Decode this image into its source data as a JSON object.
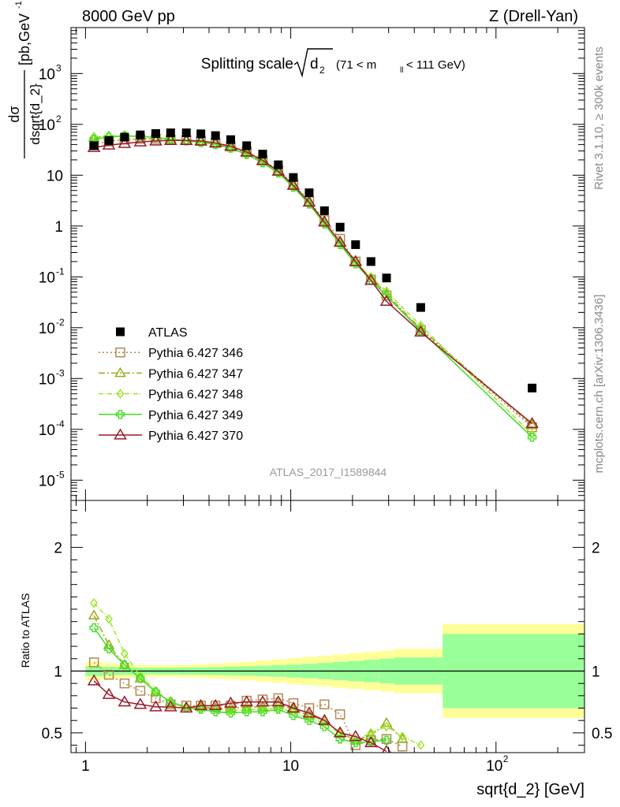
{
  "header": {
    "left": "8000 GeV pp",
    "right": "Z (Drell-Yan)"
  },
  "side_text": {
    "rivet": "Rivet 3.1.10, ≥ 300k events",
    "source": "mcplots.cern.ch [arXiv:1306.3436]"
  },
  "chart_data": [
    {
      "type": "scatter",
      "panel": "main",
      "title": "Splitting scale",
      "title_symbol": "d",
      "title_symbol_sub": "2",
      "title_cut": "(71 < m",
      "title_cut_sub": "ll",
      "title_cut_tail": " < 111 GeV)",
      "ylabel": {
        "num": "dσ",
        "den": "dsqrt{d_2}",
        "units": "[pb,GeV",
        "units_sup": "-1",
        "units_tail": "]"
      },
      "log_x": true,
      "log_y": true,
      "xlim": [
        0.85,
        270
      ],
      "ylim": [
        4e-06,
        8000
      ],
      "y_ticks": [
        {
          "base": "10",
          "exp": "-5",
          "value": 1e-05
        },
        {
          "base": "10",
          "exp": "-4",
          "value": 0.0001
        },
        {
          "base": "10",
          "exp": "-3",
          "value": 0.001
        },
        {
          "base": "10",
          "exp": "-2",
          "value": 0.01
        },
        {
          "base": "10",
          "exp": "-1",
          "value": 0.1
        },
        {
          "base": "1",
          "exp": "",
          "value": 1
        },
        {
          "base": "10",
          "exp": "",
          "value": 10
        },
        {
          "base": "10",
          "exp": "2",
          "value": 100
        },
        {
          "base": "10",
          "exp": "3",
          "value": 1000
        }
      ],
      "watermark": "ATLAS_2017_I1589844",
      "data": {
        "name": "ATLAS",
        "color": "#000000",
        "x": [
          1.1,
          1.3,
          1.55,
          1.85,
          2.2,
          2.6,
          3.1,
          3.65,
          4.3,
          5.1,
          6.1,
          7.3,
          8.7,
          10.3,
          12.3,
          14.6,
          17.4,
          20.7,
          24.6,
          29.3,
          43.0,
          150.0
        ],
        "y": [
          38,
          48,
          56,
          62,
          66,
          68,
          68,
          65,
          60,
          50,
          38,
          26,
          16,
          9.0,
          4.5,
          2.0,
          0.95,
          0.43,
          0.2,
          0.095,
          0.025,
          0.00065
        ]
      },
      "series": [
        {
          "name": "Pythia 6.427 346",
          "color": "#b08a50",
          "dash": "2,3",
          "marker": "square",
          "x": [
            1.1,
            1.3,
            1.55,
            1.85,
            2.2,
            2.6,
            3.1,
            3.65,
            4.3,
            5.1,
            6.1,
            7.3,
            8.7,
            10.3,
            12.3,
            14.6,
            17.4,
            20.7,
            24.6,
            29.3,
            43.0,
            150.0
          ],
          "y": [
            41,
            46,
            50,
            52,
            52,
            50,
            49,
            47,
            43,
            37,
            29,
            20,
            12.5,
            6.7,
            3.1,
            1.3,
            0.56,
            0.2,
            0.088,
            0.043,
            0.009,
            0.00011
          ]
        },
        {
          "name": "Pythia 6.427 347",
          "color": "#9aaa1a",
          "dash": "8,3,2,3",
          "marker": "triangle",
          "x": [
            1.1,
            1.3,
            1.55,
            1.85,
            2.2,
            2.6,
            3.1,
            3.65,
            4.3,
            5.1,
            6.1,
            7.3,
            8.7,
            10.3,
            12.3,
            14.6,
            17.4,
            20.7,
            24.6,
            29.3,
            43.0,
            150.0
          ],
          "y": [
            55,
            58,
            59,
            58,
            55,
            51,
            48,
            46,
            42,
            35,
            27,
            18.5,
            11.7,
            6.2,
            2.9,
            1.2,
            0.47,
            0.19,
            0.095,
            0.046,
            0.0095,
            0.00012
          ]
        },
        {
          "name": "Pythia 6.427 348",
          "color": "#9be62e",
          "dash": "6,2,1,2",
          "marker": "diamond",
          "x": [
            1.1,
            1.3,
            1.55,
            1.85,
            2.2,
            2.6,
            3.1,
            3.65,
            4.3,
            5.1,
            6.1,
            7.3,
            8.7,
            10.3,
            12.3,
            14.6,
            17.4,
            20.7,
            24.6,
            29.3,
            43.0,
            150.0
          ],
          "y": [
            57,
            59,
            60,
            58,
            55,
            51,
            48,
            45,
            41,
            34,
            26,
            18,
            11.2,
            6.0,
            2.8,
            1.15,
            0.45,
            0.19,
            0.1,
            0.052,
            0.011,
            8e-05
          ]
        },
        {
          "name": "Pythia 6.427 349",
          "color": "#44dd22",
          "dash": "",
          "marker": "cross",
          "x": [
            1.1,
            1.3,
            1.55,
            1.85,
            2.2,
            2.6,
            3.1,
            3.65,
            4.3,
            5.1,
            6.1,
            7.3,
            8.7,
            10.3,
            12.3,
            14.6,
            17.4,
            20.7,
            24.6,
            29.3,
            43.0,
            150.0
          ],
          "y": [
            51,
            56,
            59,
            58,
            55,
            51,
            47,
            44,
            40,
            34,
            25.5,
            17.5,
            11,
            5.8,
            2.7,
            1.1,
            0.43,
            0.18,
            0.086,
            0.042,
            0.0087,
            7e-05
          ]
        },
        {
          "name": "Pythia 6.427 370",
          "color": "#9c1a2a",
          "dash": "",
          "marker": "triangle-open",
          "x": [
            1.1,
            1.3,
            1.55,
            1.85,
            2.2,
            2.6,
            3.1,
            3.65,
            4.3,
            5.1,
            6.1,
            7.3,
            8.7,
            10.3,
            12.3,
            14.6,
            17.4,
            20.7,
            24.6,
            29.3,
            43.0,
            150.0
          ],
          "y": [
            35,
            39,
            42,
            45,
            47,
            48,
            48,
            47,
            43,
            37,
            28.5,
            19.5,
            12,
            6.3,
            2.95,
            1.2,
            0.48,
            0.2,
            0.085,
            0.033,
            0.0082,
            0.00013
          ]
        }
      ]
    },
    {
      "type": "line",
      "panel": "ratio",
      "xlabel": "sqrt{d_2} [GeV]",
      "ylabel": "Ratio to ATLAS",
      "log_x": true,
      "xlim": [
        0.85,
        270
      ],
      "ylim": [
        0.34,
        2.38
      ],
      "y_ticks": [
        {
          "label": "0.5",
          "value": 0.5
        },
        {
          "label": "1",
          "value": 1
        },
        {
          "label": "2",
          "value": 2
        }
      ],
      "x_ticks": [
        {
          "base": "1",
          "exp": "",
          "value": 1
        },
        {
          "base": "10",
          "exp": "",
          "value": 10
        },
        {
          "base": "10",
          "exp": "2",
          "value": 100
        }
      ],
      "bands": {
        "edges": [
          1.0,
          1.2,
          1.42,
          1.7,
          2.0,
          2.4,
          2.85,
          3.35,
          3.95,
          4.7,
          5.6,
          6.7,
          8.0,
          9.5,
          11.3,
          13.5,
          16.0,
          19.0,
          22.6,
          27.0,
          32.0,
          55.0,
          270.0
        ],
        "green_halfwidth": [
          0.04,
          0.035,
          0.03,
          0.028,
          0.027,
          0.027,
          0.028,
          0.03,
          0.032,
          0.035,
          0.038,
          0.042,
          0.047,
          0.052,
          0.058,
          0.065,
          0.073,
          0.082,
          0.09,
          0.1,
          0.11,
          0.3
        ],
        "yellow_halfwidth": [
          0.075,
          0.065,
          0.055,
          0.05,
          0.047,
          0.047,
          0.05,
          0.055,
          0.06,
          0.067,
          0.075,
          0.085,
          0.095,
          0.105,
          0.115,
          0.125,
          0.135,
          0.145,
          0.155,
          0.165,
          0.18,
          0.38
        ],
        "green_color": "#99ff99",
        "yellow_color": "#ffff99"
      },
      "ratio_series": [
        {
          "name": "Pythia 6.427 346",
          "x": [
            1.1,
            1.3,
            1.55,
            1.85,
            2.2,
            2.6,
            3.1,
            3.65,
            4.3,
            5.1,
            6.1,
            7.3,
            8.7,
            10.3,
            12.3,
            14.6,
            17.4,
            20.7,
            24.6,
            29.3,
            35.0
          ],
          "y": [
            1.07,
            0.97,
            0.9,
            0.84,
            0.78,
            0.73,
            0.72,
            0.72,
            0.72,
            0.72,
            0.76,
            0.77,
            0.78,
            0.74,
            0.7,
            0.73,
            0.65,
            0.4,
            0.44,
            0.45,
            0.39
          ]
        },
        {
          "name": "Pythia 6.427 347",
          "x": [
            1.1,
            1.3,
            1.55,
            1.85,
            2.2,
            2.6,
            3.1,
            3.65,
            4.3,
            5.1,
            6.1,
            7.3,
            8.7,
            10.3,
            12.3,
            14.6,
            17.4,
            20.7,
            24.6,
            29.3,
            35.0
          ],
          "y": [
            1.45,
            1.21,
            1.05,
            0.94,
            0.83,
            0.75,
            0.71,
            0.71,
            0.7,
            0.7,
            0.71,
            0.71,
            0.73,
            0.69,
            0.64,
            0.6,
            0.5,
            0.44,
            0.48,
            0.58,
            0.45
          ]
        },
        {
          "name": "Pythia 6.427 348",
          "x": [
            1.1,
            1.3,
            1.55,
            1.85,
            2.2,
            2.6,
            3.1,
            3.65,
            4.3,
            5.1,
            6.1,
            7.3,
            8.7,
            10.3,
            12.3,
            14.6,
            17.4,
            20.7,
            24.6,
            29.3,
            35.0,
            43.0
          ],
          "y": [
            1.55,
            1.42,
            1.14,
            0.96,
            0.84,
            0.75,
            0.71,
            0.7,
            0.69,
            0.68,
            0.69,
            0.69,
            0.7,
            0.67,
            0.62,
            0.58,
            0.49,
            0.44,
            0.5,
            0.55,
            0.47,
            0.4
          ]
        },
        {
          "name": "Pythia 6.427 349",
          "x": [
            1.1,
            1.3,
            1.55,
            1.85,
            2.2,
            2.6,
            3.1,
            3.65,
            4.3,
            5.1,
            6.1,
            7.3,
            8.7,
            10.3,
            12.3,
            14.6,
            17.4,
            20.7,
            24.6,
            29.3
          ],
          "y": [
            1.35,
            1.18,
            1.05,
            0.94,
            0.83,
            0.75,
            0.7,
            0.69,
            0.67,
            0.66,
            0.67,
            0.67,
            0.69,
            0.64,
            0.6,
            0.55,
            0.45,
            0.42,
            0.43,
            0.44
          ]
        },
        {
          "name": "Pythia 6.427 370",
          "x": [
            1.1,
            1.3,
            1.55,
            1.85,
            2.2,
            2.6,
            3.1,
            3.65,
            4.3,
            5.1,
            6.1,
            7.3,
            8.7,
            10.3,
            12.3,
            14.6,
            17.4,
            20.7,
            24.6,
            29.3
          ],
          "y": [
            0.92,
            0.81,
            0.75,
            0.73,
            0.71,
            0.71,
            0.7,
            0.72,
            0.72,
            0.74,
            0.75,
            0.75,
            0.75,
            0.7,
            0.66,
            0.6,
            0.5,
            0.47,
            0.42,
            0.35
          ]
        }
      ]
    }
  ]
}
